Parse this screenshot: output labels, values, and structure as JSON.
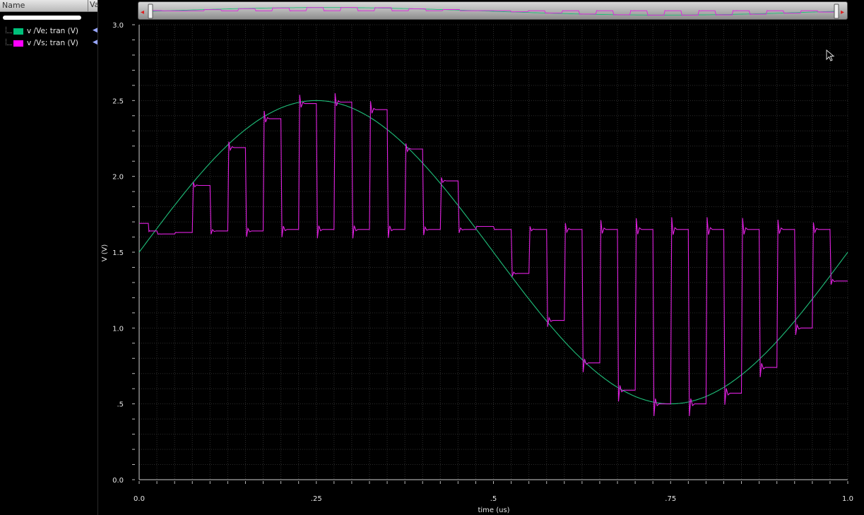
{
  "browser": {
    "column_name": "Name",
    "column_value": "Va",
    "signals": [
      {
        "label": "v /Ve; tran (V)",
        "color": "#00c07a",
        "icon": "eye-icon"
      },
      {
        "label": "v /Vs; tran (V)",
        "color": "#ff00ff",
        "icon": "eye-icon"
      }
    ]
  },
  "overview": {
    "left_arrow": "◂",
    "right_arrow": "▸"
  },
  "chart_data": {
    "type": "line",
    "xlabel": "time (us)",
    "ylabel": "V (V)",
    "xlim": [
      0,
      1.0
    ],
    "ylim": [
      0,
      3.0
    ],
    "x_ticks": [
      {
        "value": 0.0,
        "label": "0.0"
      },
      {
        "value": 0.25,
        "label": ".25"
      },
      {
        "value": 0.5,
        "label": ".5"
      },
      {
        "value": 0.75,
        "label": ".75"
      },
      {
        "value": 1.0,
        "label": "1.0"
      }
    ],
    "y_ticks": [
      {
        "value": 0.0,
        "label": "0.0"
      },
      {
        "value": 0.5,
        "label": ".5"
      },
      {
        "value": 1.0,
        "label": "1.0"
      },
      {
        "value": 1.5,
        "label": "1.5"
      },
      {
        "value": 2.0,
        "label": "2.0"
      },
      {
        "value": 2.5,
        "label": "2.5"
      },
      {
        "value": 3.0,
        "label": "3.0"
      }
    ],
    "grid": true,
    "series": [
      {
        "name": "v /Ve; tran (V)",
        "color": "#1fbf7a",
        "shape": "sine",
        "offset": 1.5,
        "amplitude": 1.0,
        "period": 1.0
      },
      {
        "name": "v /Vs; tran (V)",
        "color": "#e020e0",
        "shape": "switched-sample",
        "segments": [
          {
            "x0": 0.0,
            "x1": 0.013,
            "v": 1.69
          },
          {
            "x0": 0.013,
            "x1": 0.025,
            "v": 1.64
          },
          {
            "x0": 0.025,
            "x1": 0.05,
            "v": 1.62
          },
          {
            "x0": 0.05,
            "x1": 0.075,
            "v": 1.63
          },
          {
            "x0": 0.075,
            "x1": 0.1,
            "v": 1.94
          },
          {
            "x0": 0.1,
            "x1": 0.125,
            "v": 1.64
          },
          {
            "x0": 0.125,
            "x1": 0.15,
            "v": 2.19
          },
          {
            "x0": 0.15,
            "x1": 0.175,
            "v": 1.64
          },
          {
            "x0": 0.175,
            "x1": 0.2,
            "v": 2.38
          },
          {
            "x0": 0.2,
            "x1": 0.225,
            "v": 1.65
          },
          {
            "x0": 0.225,
            "x1": 0.25,
            "v": 2.48
          },
          {
            "x0": 0.25,
            "x1": 0.275,
            "v": 1.65
          },
          {
            "x0": 0.275,
            "x1": 0.3,
            "v": 2.49
          },
          {
            "x0": 0.3,
            "x1": 0.325,
            "v": 1.65
          },
          {
            "x0": 0.325,
            "x1": 0.35,
            "v": 2.44
          },
          {
            "x0": 0.35,
            "x1": 0.375,
            "v": 1.65
          },
          {
            "x0": 0.375,
            "x1": 0.4,
            "v": 2.18
          },
          {
            "x0": 0.4,
            "x1": 0.425,
            "v": 1.65
          },
          {
            "x0": 0.425,
            "x1": 0.45,
            "v": 1.97
          },
          {
            "x0": 0.45,
            "x1": 0.475,
            "v": 1.65
          },
          {
            "x0": 0.475,
            "x1": 0.5,
            "v": 1.67
          },
          {
            "x0": 0.5,
            "x1": 0.525,
            "v": 1.65
          },
          {
            "x0": 0.525,
            "x1": 0.55,
            "v": 1.36
          },
          {
            "x0": 0.55,
            "x1": 0.575,
            "v": 1.65
          },
          {
            "x0": 0.575,
            "x1": 0.6,
            "v": 1.05
          },
          {
            "x0": 0.6,
            "x1": 0.625,
            "v": 1.65
          },
          {
            "x0": 0.625,
            "x1": 0.65,
            "v": 0.77
          },
          {
            "x0": 0.65,
            "x1": 0.675,
            "v": 1.65
          },
          {
            "x0": 0.675,
            "x1": 0.7,
            "v": 0.59
          },
          {
            "x0": 0.7,
            "x1": 0.725,
            "v": 1.65
          },
          {
            "x0": 0.725,
            "x1": 0.75,
            "v": 0.5
          },
          {
            "x0": 0.75,
            "x1": 0.775,
            "v": 1.65
          },
          {
            "x0": 0.775,
            "x1": 0.8,
            "v": 0.5
          },
          {
            "x0": 0.8,
            "x1": 0.825,
            "v": 1.65
          },
          {
            "x0": 0.825,
            "x1": 0.85,
            "v": 0.57
          },
          {
            "x0": 0.85,
            "x1": 0.875,
            "v": 1.65
          },
          {
            "x0": 0.875,
            "x1": 0.9,
            "v": 0.74
          },
          {
            "x0": 0.9,
            "x1": 0.925,
            "v": 1.65
          },
          {
            "x0": 0.925,
            "x1": 0.95,
            "v": 1.0
          },
          {
            "x0": 0.95,
            "x1": 0.975,
            "v": 1.65
          },
          {
            "x0": 0.975,
            "x1": 1.0,
            "v": 1.31
          }
        ]
      }
    ]
  }
}
